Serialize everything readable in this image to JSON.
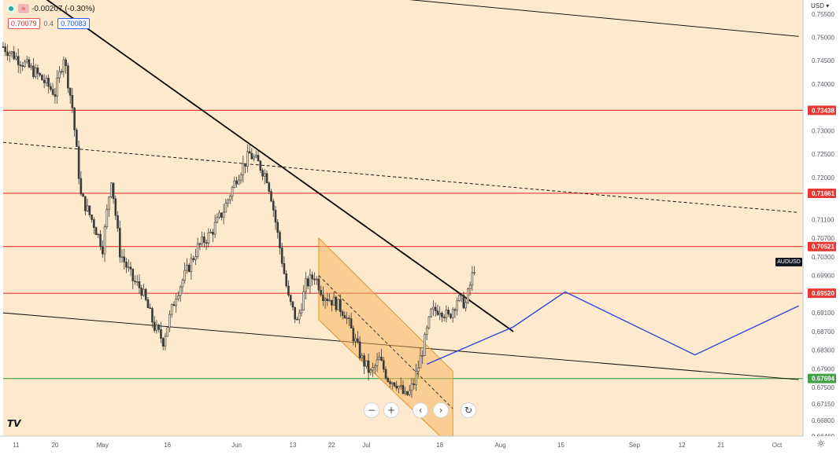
{
  "header": {
    "change_text": "-0.00207 (-0.30%)",
    "bid": "0.70079",
    "spread": "0.4",
    "ask": "0.70083",
    "currency": "USD",
    "status_icon": "market-open-dot-icon",
    "indicator_icon": "wave-indicator-icon"
  },
  "symbol": "AUDUSD",
  "navigation": {
    "zoom_out": "−",
    "zoom_in": "+",
    "scroll_left": "‹",
    "scroll_right": "›",
    "reset": "↻"
  },
  "logo_text": "TV",
  "settings_icon": "☼",
  "colors": {
    "background": "#fde9cd",
    "red_line": "#e53935",
    "green_line": "#43a047",
    "trend_line": "#000000",
    "projection_line": "#2f46e0",
    "channel_fill": "#f7b45a"
  },
  "chart_data": {
    "type": "candlestick",
    "symbol": "AUDUSD",
    "ylim": [
      0.6646,
      0.758
    ],
    "y_ticks": [
      0.755,
      0.75,
      0.745,
      0.74,
      0.73,
      0.725,
      0.72,
      0.711,
      0.707,
      0.703,
      0.699,
      0.691,
      0.687,
      0.683,
      0.679,
      0.675,
      0.6715,
      0.668,
      0.6646
    ],
    "x_ticks": [
      "11",
      "20",
      "May",
      "16",
      "Jun",
      "13",
      "22",
      "Jul",
      "18",
      "Aug",
      "15",
      "Sep",
      "12",
      "21",
      "Oct"
    ],
    "x_tick_days": [
      0,
      9,
      20,
      35,
      51,
      64,
      73,
      81,
      98,
      112,
      126,
      143,
      154,
      163,
      176
    ],
    "x_range_days": [
      -3,
      182
    ],
    "horizontal_levels": [
      {
        "value": 0.73438,
        "color": "red"
      },
      {
        "value": 0.71661,
        "color": "red"
      },
      {
        "value": 0.70521,
        "color": "red"
      },
      {
        "value": 0.6952,
        "color": "red"
      },
      {
        "value": 0.67694,
        "color": "green"
      }
    ],
    "close_path": [
      {
        "day": -3,
        "value": 0.748
      },
      {
        "day": 1,
        "value": 0.745
      },
      {
        "day": 5,
        "value": 0.742
      },
      {
        "day": 9,
        "value": 0.738
      },
      {
        "day": 11,
        "value": 0.746
      },
      {
        "day": 13,
        "value": 0.735
      },
      {
        "day": 15,
        "value": 0.716
      },
      {
        "day": 18,
        "value": 0.71
      },
      {
        "day": 20,
        "value": 0.705
      },
      {
        "day": 22,
        "value": 0.72
      },
      {
        "day": 24,
        "value": 0.704
      },
      {
        "day": 27,
        "value": 0.698
      },
      {
        "day": 29,
        "value": 0.696
      },
      {
        "day": 32,
        "value": 0.688
      },
      {
        "day": 34,
        "value": 0.685
      },
      {
        "day": 37,
        "value": 0.695
      },
      {
        "day": 39,
        "value": 0.699
      },
      {
        "day": 42,
        "value": 0.705
      },
      {
        "day": 45,
        "value": 0.708
      },
      {
        "day": 48,
        "value": 0.713
      },
      {
        "day": 51,
        "value": 0.72
      },
      {
        "day": 54,
        "value": 0.725
      },
      {
        "day": 56,
        "value": 0.723
      },
      {
        "day": 58,
        "value": 0.72
      },
      {
        "day": 59,
        "value": 0.716
      },
      {
        "day": 61,
        "value": 0.705
      },
      {
        "day": 63,
        "value": 0.694
      },
      {
        "day": 65,
        "value": 0.689
      },
      {
        "day": 67,
        "value": 0.697
      },
      {
        "day": 69,
        "value": 0.699
      },
      {
        "day": 71,
        "value": 0.695
      },
      {
        "day": 74,
        "value": 0.693
      },
      {
        "day": 76,
        "value": 0.691
      },
      {
        "day": 78,
        "value": 0.686
      },
      {
        "day": 80,
        "value": 0.681
      },
      {
        "day": 82,
        "value": 0.678
      },
      {
        "day": 84,
        "value": 0.681
      },
      {
        "day": 86,
        "value": 0.677
      },
      {
        "day": 88,
        "value": 0.676
      },
      {
        "day": 90,
        "value": 0.673
      },
      {
        "day": 91,
        "value": 0.674
      },
      {
        "day": 92,
        "value": 0.676
      },
      {
        "day": 94,
        "value": 0.683
      },
      {
        "day": 96,
        "value": 0.691
      },
      {
        "day": 98,
        "value": 0.692
      },
      {
        "day": 100,
        "value": 0.69
      },
      {
        "day": 102,
        "value": 0.694
      },
      {
        "day": 104,
        "value": 0.693
      },
      {
        "day": 106,
        "value": 0.7008
      }
    ],
    "trend_lines": [
      {
        "style": "solid",
        "color": "black",
        "from": {
          "day": 6,
          "value": 0.7588
        },
        "to": {
          "day": 115,
          "value": 0.687
        }
      },
      {
        "style": "solid",
        "color": "black",
        "from": {
          "day": 46,
          "value": 0.762
        },
        "to": {
          "day": 181,
          "value": 0.7502
        }
      },
      {
        "style": "solid",
        "color": "black",
        "from": {
          "day": -3,
          "value": 0.691
        },
        "to": {
          "day": 181,
          "value": 0.6767
        }
      },
      {
        "style": "dashed",
        "color": "black",
        "from": {
          "day": -3,
          "value": 0.7275
        },
        "to": {
          "day": 181,
          "value": 0.7125
        }
      }
    ],
    "channel": {
      "color": "orange",
      "upper": [
        {
          "day": 70,
          "value": 0.707
        },
        {
          "day": 101,
          "value": 0.6785
        }
      ],
      "lower": [
        {
          "day": 70,
          "value": 0.6895
        },
        {
          "day": 101,
          "value": 0.662
        }
      ],
      "midline": [
        {
          "day": 70,
          "value": 0.699
        },
        {
          "day": 101,
          "value": 0.6705
        }
      ]
    },
    "projection": {
      "color": "blue",
      "points": [
        {
          "day": 95,
          "value": 0.68
        },
        {
          "day": 115,
          "value": 0.688
        },
        {
          "day": 127,
          "value": 0.6955
        },
        {
          "day": 157,
          "value": 0.682
        },
        {
          "day": 181,
          "value": 0.6925
        }
      ]
    }
  }
}
